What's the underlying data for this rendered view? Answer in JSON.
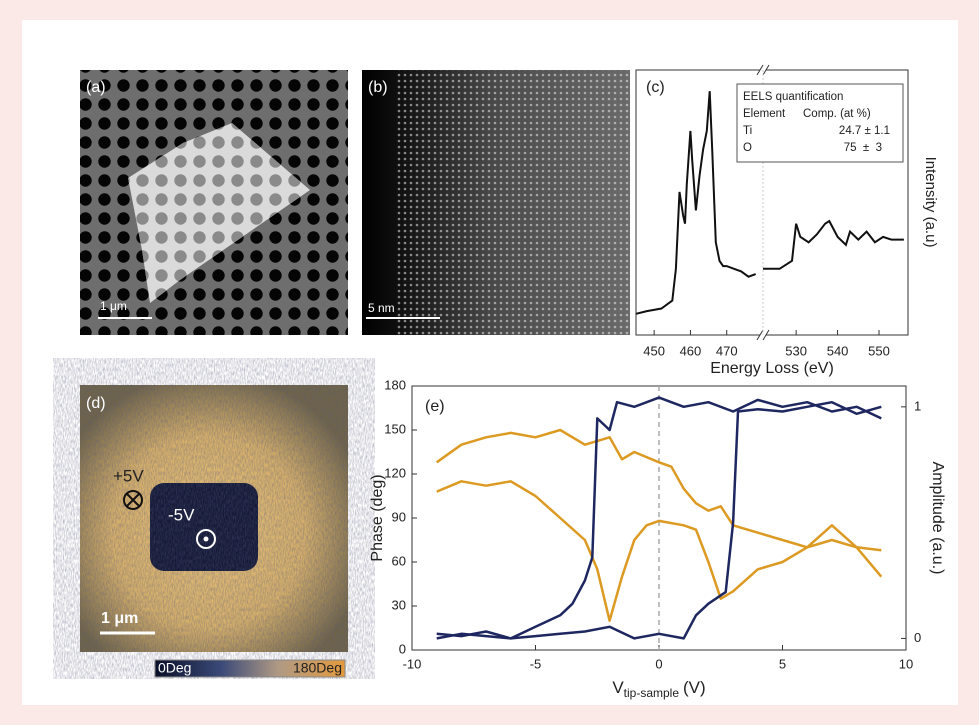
{
  "panels": [
    {
      "label": "(a)",
      "scale_bar": "1 μm"
    },
    {
      "label": "(b)",
      "scale_bar": "5 nm"
    },
    {
      "label": "(d)",
      "annotations": [
        "+5V",
        "-5V"
      ],
      "scale_bar": "1 μm",
      "colorbar_labels": [
        "0Deg",
        "180Deg"
      ]
    }
  ],
  "chart_data": [
    {
      "type": "line",
      "label": "(c)",
      "xlabel": "Energy Loss (eV)",
      "ylabel": "Intensity (a.u)",
      "x_segments": [
        {
          "xlim": [
            445,
            480
          ],
          "xticks": [
            450,
            460,
            470
          ]
        },
        {
          "xlim": [
            522,
            557
          ],
          "xticks": [
            530,
            540,
            550
          ]
        }
      ],
      "ylim": [
        0,
        100
      ],
      "series": [
        {
          "color": "#111111",
          "x": [
            445,
            448,
            452,
            455,
            456,
            457,
            458,
            458.5,
            459,
            460,
            460.5,
            461.5,
            462.5,
            463.5,
            464.5,
            465.3,
            466,
            467,
            468,
            469,
            470,
            472,
            474,
            476,
            478,
            null,
            522,
            526,
            529,
            530,
            531,
            533,
            535,
            537,
            538,
            540,
            542,
            543,
            545,
            547,
            549,
            551,
            553,
            556
          ],
          "values": [
            8,
            9,
            10,
            13,
            25,
            54,
            45,
            42,
            57,
            77,
            66,
            47,
            60,
            70,
            77,
            92,
            70,
            35,
            28,
            26,
            26,
            25,
            24,
            22,
            23,
            null,
            25,
            25,
            28,
            42,
            37,
            35,
            38,
            42,
            43,
            37,
            34,
            39,
            36,
            39,
            35,
            37,
            36,
            36
          ]
        }
      ],
      "inset": {
        "title": "EELS quantification",
        "header": [
          "Element",
          "Comp. (at %)"
        ],
        "rows": [
          [
            "Ti",
            "24.7 ± 1.1"
          ],
          [
            "O",
            "75  ±  3"
          ]
        ]
      }
    },
    {
      "type": "line",
      "label": "(e)",
      "xlabel": {
        "symbol": "V",
        "subscript": "tip-sample",
        "unit": "(V)"
      },
      "ylabel": "Phase (deg)",
      "y2label": "Amplitude (a.u.)",
      "zero_line": true,
      "xlim": [
        -10,
        10
      ],
      "xticks": [
        -10,
        -5,
        0,
        5,
        10
      ],
      "ylim": [
        0,
        180
      ],
      "yticks": [
        0,
        30,
        60,
        90,
        120,
        150,
        180
      ],
      "y2lim": [
        -0.05,
        1.09
      ],
      "y2ticks": [
        0,
        1
      ],
      "series": [
        {
          "color": "#dc9a22",
          "x": [
            -9,
            -8,
            -7,
            -6,
            -5,
            -4,
            -3,
            -2,
            -1.5,
            -1,
            0,
            0.5,
            1,
            1.5,
            2,
            2.5,
            3,
            4,
            5,
            6,
            7,
            8,
            9
          ],
          "values": [
            128,
            140,
            145,
            148,
            145,
            150,
            140,
            145,
            130,
            135,
            128,
            125,
            110,
            100,
            95,
            98,
            85,
            80,
            75,
            70,
            75,
            70,
            68
          ]
        },
        {
          "color": "#dc9a22",
          "x": [
            -9,
            -8,
            -7,
            -6,
            -5,
            -4,
            -3,
            -2.5,
            -2,
            -1.5,
            -1,
            -0.5,
            0,
            1,
            1.5,
            2,
            2.5,
            3,
            4,
            5,
            6,
            7,
            8,
            9
          ],
          "values": [
            108,
            115,
            112,
            115,
            105,
            90,
            75,
            55,
            20,
            50,
            75,
            85,
            88,
            85,
            82,
            60,
            35,
            40,
            55,
            60,
            70,
            85,
            70,
            50
          ]
        },
        {
          "color": "#1e2760",
          "axis": "y2",
          "x": [
            -9,
            -8,
            -7,
            -6,
            -5,
            -4,
            -3.5,
            -3,
            -2.7,
            -2.5,
            -2,
            -1.7,
            -1,
            0,
            1,
            2,
            3,
            4,
            5,
            6,
            7,
            8,
            9
          ],
          "values": [
            0.02,
            0.01,
            0.03,
            0.0,
            0.05,
            0.1,
            0.15,
            0.25,
            0.35,
            0.95,
            0.9,
            1.02,
            1.0,
            1.04,
            1.0,
            1.02,
            0.98,
            1.03,
            1.0,
            1.02,
            0.98,
            1.0,
            0.95
          ]
        },
        {
          "color": "#1e2760",
          "axis": "y2",
          "x": [
            9,
            8,
            7,
            6,
            5,
            4,
            3.2,
            3,
            2.7,
            2,
            1.5,
            1,
            0,
            -1,
            -2,
            -3,
            -4,
            -5,
            -6,
            -7,
            -8,
            -9
          ],
          "values": [
            1.0,
            0.97,
            1.02,
            1.0,
            0.98,
            0.99,
            0.98,
            0.5,
            0.2,
            0.15,
            0.1,
            0.0,
            0.02,
            0.0,
            0.05,
            0.03,
            0.02,
            0.01,
            0.0,
            0.01,
            0.02,
            0.0
          ]
        }
      ]
    }
  ]
}
